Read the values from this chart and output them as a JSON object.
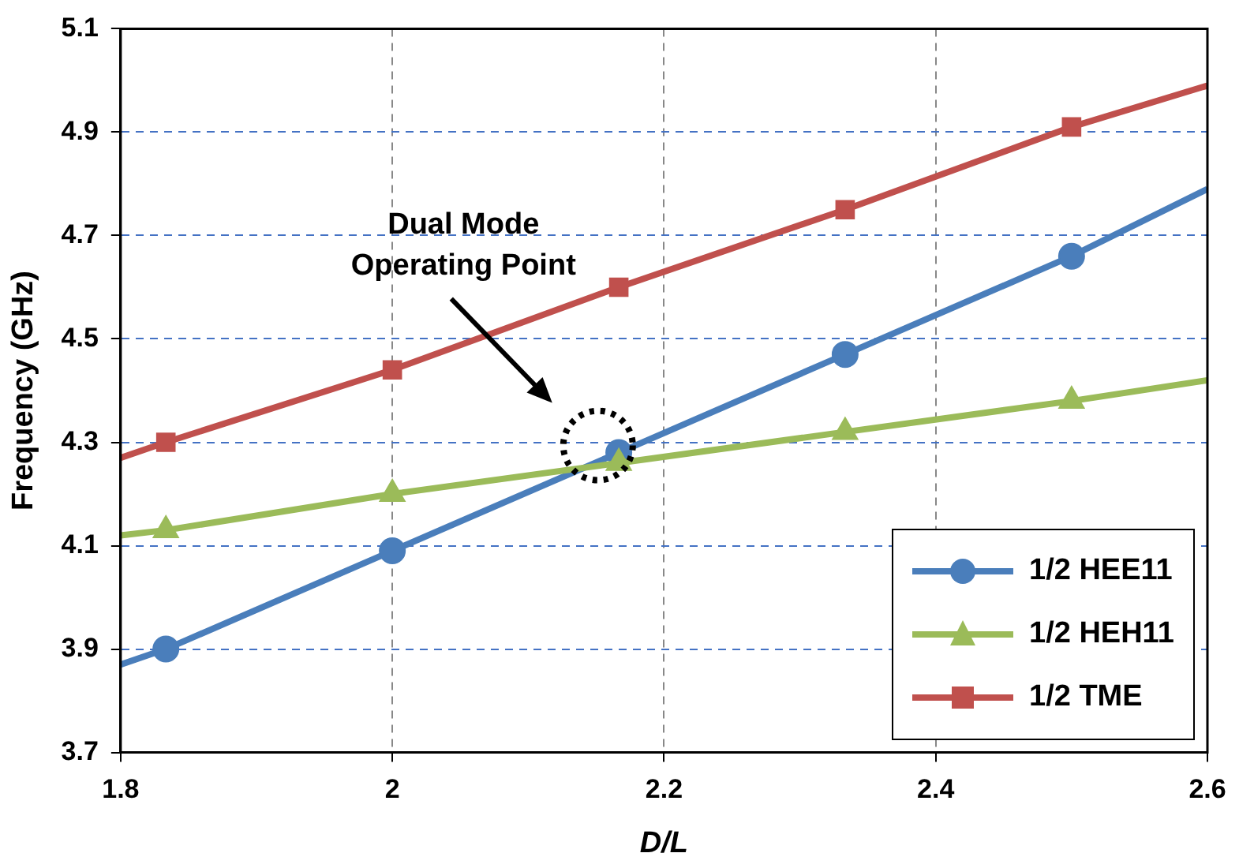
{
  "chart_data": {
    "type": "line",
    "xlabel": "D/L",
    "ylabel": "Frequency (GHz)",
    "x": [
      1.8,
      1.8333,
      2,
      2.1667,
      2.3333,
      2.5,
      2.6
    ],
    "series": [
      {
        "name": "1/2 HEE11",
        "color": "#4a7ebb",
        "marker": "circle",
        "values": [
          3.87,
          3.9,
          4.09,
          4.28,
          4.47,
          4.66,
          4.79
        ]
      },
      {
        "name": "1/2 HEH11",
        "color": "#9bbb59",
        "marker": "triangle",
        "values": [
          4.12,
          4.13,
          4.2,
          4.26,
          4.32,
          4.38,
          4.42
        ]
      },
      {
        "name": "1/2 TME",
        "color": "#c0504d",
        "marker": "square",
        "values": [
          4.27,
          4.3,
          4.44,
          4.6,
          4.75,
          4.91,
          4.99
        ]
      }
    ],
    "xlim": [
      1.8,
      2.6
    ],
    "xticks": [
      1.8,
      2,
      2.2,
      2.4,
      2.6
    ],
    "ylim": [
      3.7,
      5.1
    ],
    "yticks": [
      3.7,
      3.9,
      4.1,
      4.3,
      4.5,
      4.7,
      4.9,
      5.1
    ],
    "grid": true,
    "legend": "bottom right",
    "line_style": "solid",
    "annotations": [
      "Dual Mode Operating Point"
    ]
  }
}
